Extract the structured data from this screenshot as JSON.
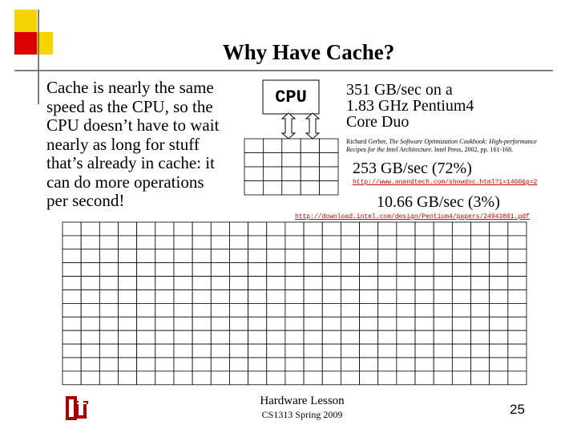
{
  "header": {
    "title": "Why Have Cache?"
  },
  "body": {
    "lines": [
      "Cache is nearly the same",
      "speed as the CPU, so the",
      "CPU doesn’t have to wait",
      "nearly as long for stuff",
      "that’s already in cache: it",
      "can do more operations",
      "per second!"
    ]
  },
  "diagram": {
    "cpu_label": "CPU",
    "cpu_rate": [
      "351 GB/sec on a",
      "1.83 GHz Pentium4",
      "Core Duo"
    ],
    "citation": {
      "author": "Richard Gerber, ",
      "book": "The Software Optimization Cookbook: High-performance Recipes for the Intel Architecture",
      "rest": ". Intel Press, 2002, pp. 161-168."
    },
    "cache_rate": "253 GB/sec (72%)",
    "cache_url": "http://www.anandtech.com/showdoc.html?i=1460&p=2",
    "memory_rate": "10.66 GB/sec (3%)",
    "memory_url": "http://download.intel.com/design/Pentium4/papers/24943801.pdf"
  },
  "footer": {
    "course": "Hardware Lesson",
    "term": "CS1313 Spring 2009",
    "page": "25"
  }
}
